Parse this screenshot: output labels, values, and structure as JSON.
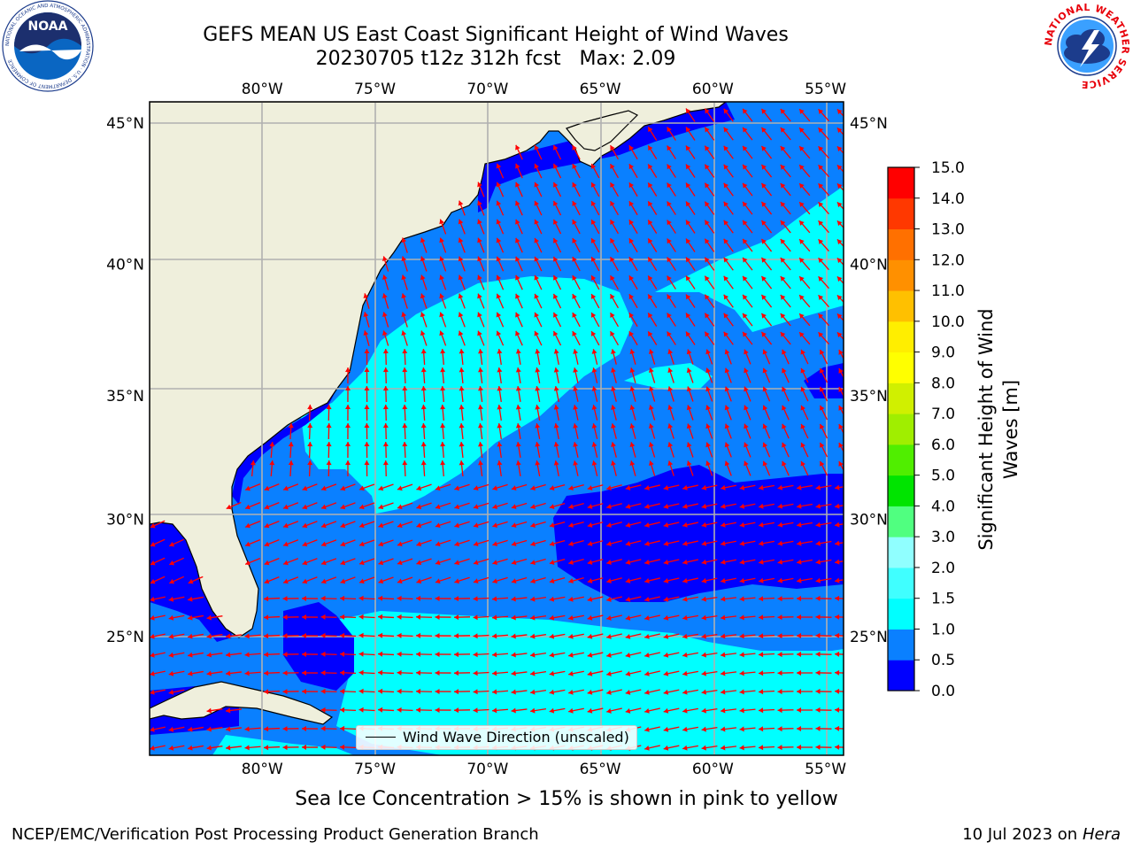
{
  "title": {
    "line1": "GEFS MEAN US East Coast Significant Height of Wind Waves",
    "line2": "20230705 t12z 312h fcst   Max: 2.09"
  },
  "map": {
    "extent": {
      "lon_min": -85,
      "lon_max": -54.2,
      "lat_min": 20.5,
      "lat_max": 45.8
    },
    "lon_ticks": [
      {
        "value": -80,
        "label": "80°W"
      },
      {
        "value": -75,
        "label": "75°W"
      },
      {
        "value": -70,
        "label": "70°W"
      },
      {
        "value": -65,
        "label": "65°W"
      },
      {
        "value": -60,
        "label": "60°W"
      },
      {
        "value": -55,
        "label": "55°W"
      }
    ],
    "lat_ticks": [
      {
        "value": 25,
        "label": "25°N"
      },
      {
        "value": 30,
        "label": "30°N"
      },
      {
        "value": 35,
        "label": "35°N"
      },
      {
        "value": 40,
        "label": "40°N"
      },
      {
        "value": 45,
        "label": "45°N"
      }
    ],
    "gridlines": true,
    "land_color": "#efefdc",
    "ocean_base_color": "#0a80ff",
    "arrow_color": "#ff0000"
  },
  "legend": {
    "label": "Wind Wave Direction (unscaled)",
    "position": "bottom-center"
  },
  "colorbar": {
    "label_line1": "Significant Height of Wind",
    "label_line2": "Waves [m]",
    "levels": [
      "0.0",
      "0.5",
      "1.0",
      "1.5",
      "2.0",
      "3.0",
      "4.0",
      "5.0",
      "6.0",
      "7.0",
      "8.0",
      "9.0",
      "10.0",
      "11.0",
      "12.0",
      "13.0",
      "14.0",
      "15.0"
    ],
    "colors": [
      "#0000ff",
      "#0a80ff",
      "#00ffff",
      "#40ffff",
      "#90ffff",
      "#50ff80",
      "#00e400",
      "#50ee00",
      "#a0ee00",
      "#d0f000",
      "#ffff00",
      "#ffee00",
      "#ffc000",
      "#ff9000",
      "#ff7000",
      "#ff3800",
      "#ff0000"
    ]
  },
  "ice_note": "Sea Ice Concentration > 15% is shown in pink to yellow",
  "footer": {
    "left": "NCEP/EMC/Verification Post Processing Product Generation Branch",
    "right_date": "10 Jul 2023 on ",
    "right_host": "Hera"
  },
  "logos": {
    "noaa_text": "NOAA",
    "noaa_ring": "NATIONAL OCEANIC AND ATMOSPHERIC ADMINISTRATION · U.S. DEPARTMENT OF COMMERCE",
    "nws_ring": "NATIONAL WEATHER SERVICE"
  }
}
